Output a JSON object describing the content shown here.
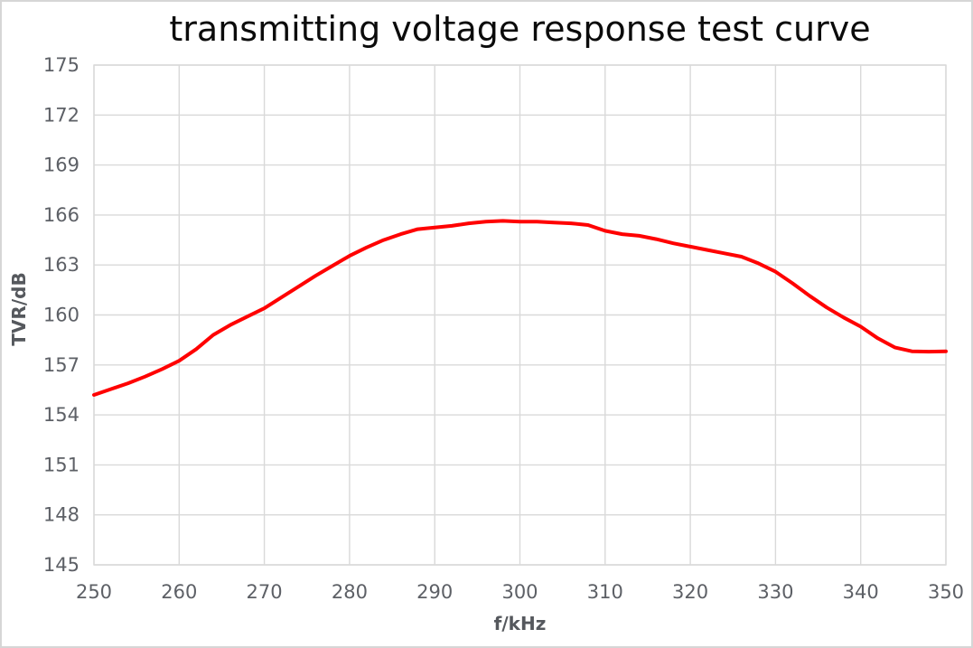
{
  "page": {
    "background": "#ffffff",
    "frame_border": "#d6d6d6"
  },
  "chart_data": {
    "type": "line",
    "title": "transmitting voltage response test curve",
    "xlabel": "f/kHz",
    "ylabel": "TVR/dB",
    "xlim": [
      250,
      350
    ],
    "ylim": [
      145,
      175
    ],
    "x_ticks": [
      250,
      260,
      270,
      280,
      290,
      300,
      310,
      320,
      330,
      340,
      350
    ],
    "y_ticks": [
      145,
      148,
      151,
      154,
      157,
      160,
      163,
      166,
      169,
      172,
      175
    ],
    "grid": true,
    "legend": "none",
    "colors": {
      "line": "#ff0000",
      "grid": "#d9d9d9",
      "plot_border": "#d9d9d9",
      "tick_label": "#5d6066",
      "axis_title": "#55585d",
      "title": "#0b0b0b"
    },
    "series": [
      {
        "name": "transmitting voltage response",
        "color": "#ff0000",
        "x": [
          250,
          252,
          254,
          256,
          258,
          260,
          262,
          264,
          266,
          268,
          270,
          272,
          274,
          276,
          278,
          280,
          282,
          284,
          286,
          288,
          290,
          292,
          294,
          296,
          298,
          300,
          302,
          304,
          306,
          308,
          310,
          312,
          314,
          316,
          318,
          320,
          322,
          324,
          326,
          328,
          330,
          332,
          334,
          336,
          338,
          340,
          342,
          344,
          346,
          348,
          350
        ],
        "y": [
          155.2,
          155.55,
          155.9,
          156.3,
          156.75,
          157.25,
          157.95,
          158.8,
          159.4,
          159.9,
          160.4,
          161.05,
          161.7,
          162.35,
          162.95,
          163.55,
          164.05,
          164.5,
          164.85,
          165.15,
          165.25,
          165.35,
          165.5,
          165.6,
          165.65,
          165.6,
          165.6,
          165.55,
          165.5,
          165.4,
          165.05,
          164.85,
          164.75,
          164.55,
          164.3,
          164.1,
          163.9,
          163.7,
          163.5,
          163.1,
          162.6,
          161.9,
          161.15,
          160.45,
          159.85,
          159.3,
          158.6,
          158.05,
          157.82,
          157.8,
          157.82
        ]
      }
    ]
  }
}
